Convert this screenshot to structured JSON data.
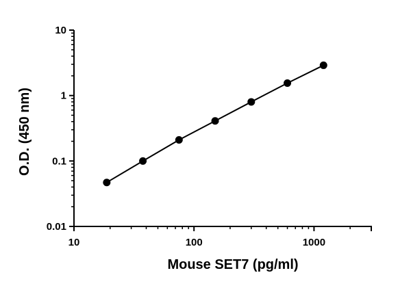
{
  "chart_data": {
    "type": "scatter",
    "xscale": "log",
    "yscale": "log",
    "xlabel": "Mouse SET7 (pg/ml)",
    "ylabel": "O.D. (450 nm)",
    "xlim": [
      10,
      3000
    ],
    "ylim": [
      0.01,
      10
    ],
    "x_ticks": [
      10,
      100,
      1000
    ],
    "x_tick_labels": [
      "10",
      "100",
      "1000"
    ],
    "y_ticks": [
      0.01,
      0.1,
      1,
      10
    ],
    "y_tick_labels": [
      "0.01",
      "0.1",
      "1",
      "10"
    ],
    "grid": false,
    "series": [
      {
        "x": [
          18.75,
          37.5,
          75,
          150,
          300,
          600,
          1200
        ],
        "y": [
          0.047,
          0.1,
          0.21,
          0.41,
          0.8,
          1.55,
          2.9
        ],
        "marker": "circle",
        "line": true,
        "color": "#000000"
      }
    ]
  }
}
